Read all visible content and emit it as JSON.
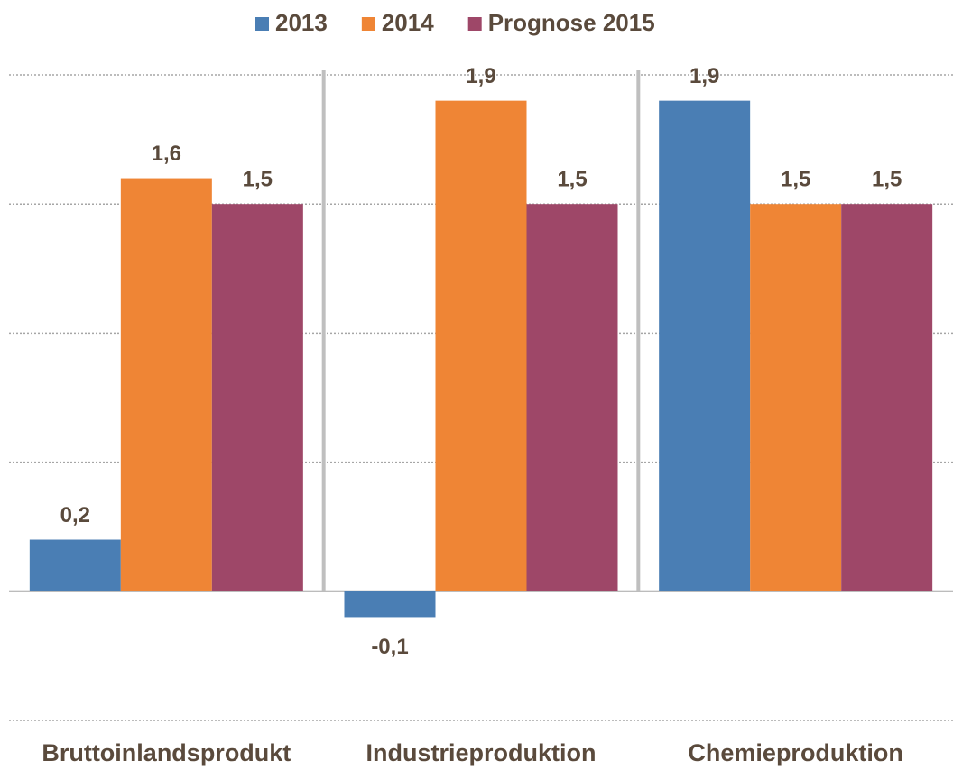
{
  "chart_data": {
    "type": "bar",
    "categories": [
      "Bruttoinlandsprodukt",
      "Industrieproduktion",
      "Chemieproduktion"
    ],
    "series": [
      {
        "name": "2013",
        "color": "#4a7eb4",
        "values": [
          0.2,
          -0.1,
          1.9
        ],
        "value_labels": [
          "0,2",
          "-0,1",
          "1,9"
        ]
      },
      {
        "name": "2014",
        "color": "#ef8535",
        "values": [
          1.6,
          1.9,
          1.5
        ],
        "value_labels": [
          "1,6",
          "1,9",
          "1,5"
        ]
      },
      {
        "name": "Prognose 2015",
        "color": "#9e4768",
        "values": [
          1.5,
          1.5,
          1.5
        ],
        "value_labels": [
          "1,5",
          "1,5",
          "1,5"
        ]
      }
    ],
    "ylim": [
      -0.5,
      2.0
    ],
    "yticks": [
      -0.5,
      0,
      0.5,
      1,
      1.5,
      2
    ],
    "grid": true,
    "legend": "top"
  }
}
